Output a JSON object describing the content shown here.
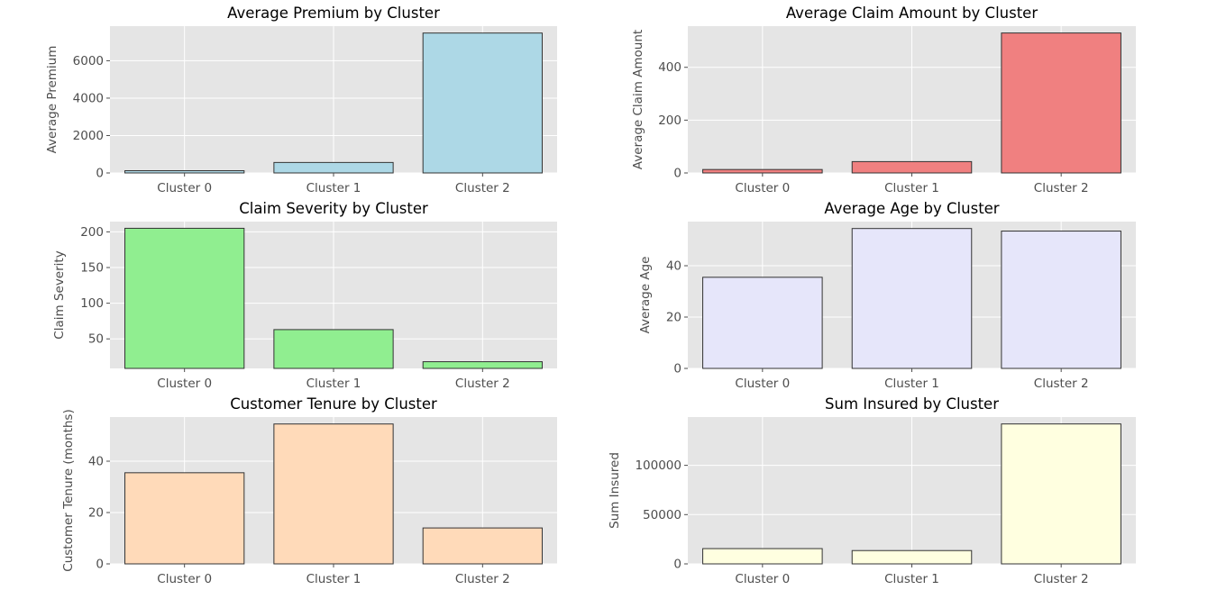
{
  "chart_data": [
    {
      "type": "bar",
      "title": "Average Premium by Cluster",
      "xlabel": "",
      "ylabel": "Average Premium",
      "categories": [
        "Cluster 0",
        "Cluster 1",
        "Cluster 2"
      ],
      "values": [
        120,
        560,
        7480
      ],
      "ylim": [
        0,
        7850
      ],
      "yticks": [
        0,
        2000,
        4000,
        6000
      ],
      "color": "#add8e6",
      "grid": true
    },
    {
      "type": "bar",
      "title": "Average Claim Amount by Cluster",
      "xlabel": "",
      "ylabel": "Average Claim Amount",
      "categories": [
        "Cluster 0",
        "Cluster 1",
        "Cluster 2"
      ],
      "values": [
        13,
        43,
        530
      ],
      "ylim": [
        0,
        556
      ],
      "yticks": [
        0,
        200,
        400
      ],
      "color": "#f08080",
      "grid": true
    },
    {
      "type": "bar",
      "title": "Claim Severity by Cluster",
      "xlabel": "",
      "ylabel": "Claim Severity",
      "categories": [
        "Cluster 0",
        "Cluster 1",
        "Cluster 2"
      ],
      "values": [
        205,
        63,
        18
      ],
      "ylim": [
        8.6,
        214.4
      ],
      "yticks": [
        50,
        100,
        150,
        200
      ],
      "color": "#90ee90",
      "grid": true
    },
    {
      "type": "bar",
      "title": "Average Age by Cluster",
      "xlabel": "",
      "ylabel": "Average Age",
      "categories": [
        "Cluster 0",
        "Cluster 1",
        "Cluster 2"
      ],
      "values": [
        35.5,
        54.5,
        53.5
      ],
      "ylim": [
        0,
        57.2
      ],
      "yticks": [
        0,
        20,
        40
      ],
      "color": "#e6e6fa",
      "grid": true
    },
    {
      "type": "bar",
      "title": "Customer Tenure by Cluster",
      "xlabel": "",
      "ylabel": "Customer Tenure (months)",
      "categories": [
        "Cluster 0",
        "Cluster 1",
        "Cluster 2"
      ],
      "values": [
        35.5,
        54.5,
        14
      ],
      "ylim": [
        0,
        57.2
      ],
      "yticks": [
        0,
        20,
        40
      ],
      "color": "#ffdab9",
      "grid": true
    },
    {
      "type": "bar",
      "title": "Sum Insured by Cluster",
      "xlabel": "",
      "ylabel": "Sum Insured",
      "categories": [
        "Cluster 0",
        "Cluster 1",
        "Cluster 2"
      ],
      "values": [
        15500,
        13500,
        142000
      ],
      "ylim": [
        0,
        149000
      ],
      "yticks": [
        0,
        50000,
        100000
      ],
      "color": "#ffffe0",
      "grid": true
    }
  ]
}
